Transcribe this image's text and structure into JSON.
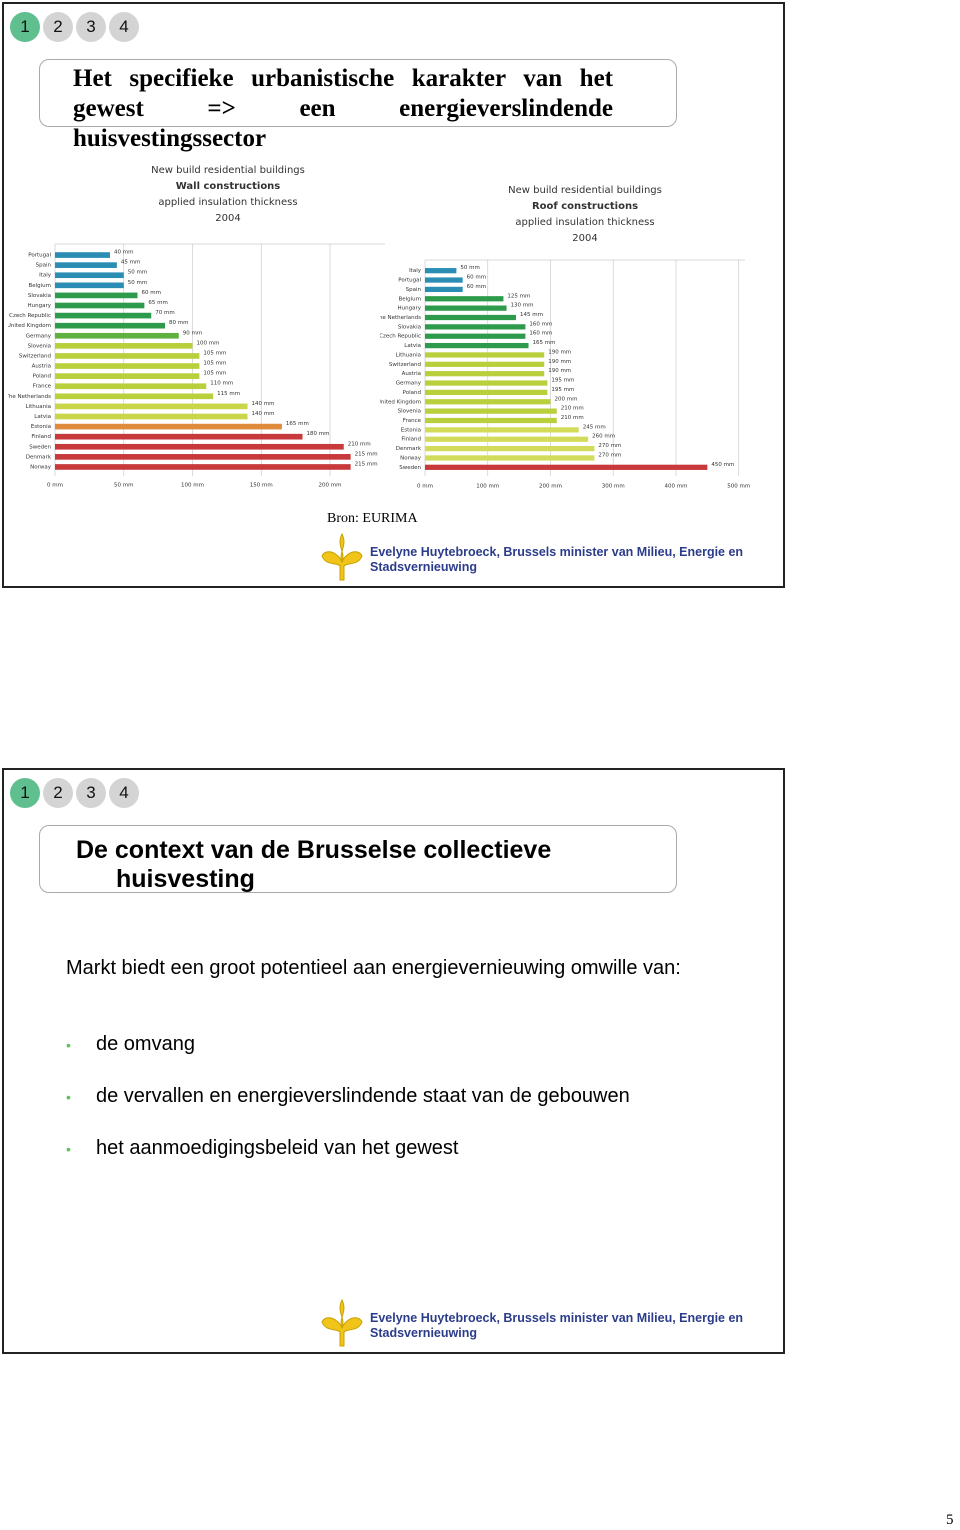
{
  "slides": [
    {
      "nav": [
        "1",
        "2",
        "3",
        "4"
      ],
      "title": "Het specifieke urbanistische karakter van het gewest => een energieverslindende huisvestingssector",
      "source": "Bron: EURIMA",
      "footer": "Evelyne Huytebroeck, Brussels minister van Milieu, Energie en Stadsvernieuwing"
    },
    {
      "nav": [
        "1",
        "2",
        "3",
        "4"
      ],
      "title_lines": [
        "De context van de Brusselse collectieve",
        "huisvesting"
      ],
      "paragraph": "Markt biedt een groot potentieel aan energievernieuwing omwille van:",
      "bullets": [
        "de omvang",
        "de vervallen en energieverslindende staat van de gebouwen",
        "het aanmoedigingsbeleid van het gewest"
      ],
      "footer": "Evelyne Huytebroeck, Brussels minister van Milieu, Energie en Stadsvernieuwing"
    }
  ],
  "page_number": "5",
  "chart_data": [
    {
      "type": "hbar",
      "title_lines": [
        "New build residential buildings",
        "Wall constructions",
        "applied insulation thickness",
        "2004"
      ],
      "categories": [
        "Portugal",
        "Spain",
        "Italy",
        "Belgium",
        "Slovakia",
        "Hungary",
        "Czech Republic",
        "United Kingdom",
        "Germany",
        "Slovenia",
        "Switzerland",
        "Austria",
        "Poland",
        "France",
        "The Netherlands",
        "Lithuania",
        "Latvia",
        "Estonia",
        "Finland",
        "Sweden",
        "Denmark",
        "Norway"
      ],
      "values": [
        40,
        45,
        50,
        50,
        60,
        65,
        70,
        80,
        90,
        100,
        105,
        105,
        105,
        110,
        115,
        140,
        140,
        165,
        180,
        210,
        215,
        215
      ],
      "value_labels": [
        "40 mm",
        "45 mm",
        "50 mm",
        "50 mm",
        "60 mm",
        "65 mm",
        "70 mm",
        "80 mm",
        "90 mm",
        "100 mm",
        "105 mm",
        "105 mm",
        "105 mm",
        "110 mm",
        "115 mm",
        "140 mm",
        "140 mm",
        "165 mm",
        "180 mm",
        "210 mm",
        "215 mm",
        "215 mm"
      ],
      "colors": [
        "#2b8db3",
        "#2b8db3",
        "#2b8db3",
        "#2b8db3",
        "#2e9a4c",
        "#2e9a4c",
        "#2e9a4c",
        "#2e9a4c",
        "#5fb13f",
        "#b9cf3c",
        "#b9cf3c",
        "#b9cf3c",
        "#b9cf3c",
        "#b9cf3c",
        "#b9cf3c",
        "#c9d64a",
        "#c9d64a",
        "#e08a3c",
        "#c8393b",
        "#c8393b",
        "#c8393b",
        "#c8393b"
      ],
      "xlim": [
        0,
        240
      ],
      "xticks": [
        {
          "value": 0,
          "label": "0 mm"
        },
        {
          "value": 50,
          "label": "50 mm"
        },
        {
          "value": 100,
          "label": "100 mm"
        },
        {
          "value": 150,
          "label": "150 mm"
        },
        {
          "value": 200,
          "label": "200 mm"
        }
      ],
      "grid": true
    },
    {
      "type": "hbar",
      "title_lines": [
        "New build residential buildings",
        "Roof constructions",
        "applied insulation thickness",
        "2004"
      ],
      "categories": [
        "Italy",
        "Portugal",
        "Spain",
        "Belgium",
        "Hungary",
        "The Netherlands",
        "Slovakia",
        "Czech Republic",
        "Latvia",
        "Lithuania",
        "Switzerland",
        "Austria",
        "Germany",
        "Poland",
        "United Kingdom",
        "Slovenia",
        "France",
        "Estonia",
        "Finland",
        "Denmark",
        "Norway",
        "Sweden"
      ],
      "values": [
        50,
        60,
        60,
        125,
        130,
        145,
        160,
        160,
        165,
        190,
        190,
        190,
        195,
        195,
        200,
        210,
        210,
        245,
        260,
        270,
        270,
        450
      ],
      "value_labels": [
        "50 mm",
        "60 mm",
        "60 mm",
        "125 mm",
        "130 mm",
        "145 mm",
        "160 mm",
        "160 mm",
        "165 mm",
        "190 mm",
        "190 mm",
        "190 mm",
        "195 mm",
        "195 mm",
        "200 mm",
        "210 mm",
        "210 mm",
        "245 mm",
        "260 mm",
        "270 mm",
        "270 mm",
        "450 mm"
      ],
      "colors": [
        "#2b8db3",
        "#2b8db3",
        "#2b8db3",
        "#2e9a4c",
        "#2e9a4c",
        "#2e9a4c",
        "#2e9a4c",
        "#2e9a4c",
        "#2e9a4c",
        "#b9cf3c",
        "#b9cf3c",
        "#b9cf3c",
        "#b9cf3c",
        "#b9cf3c",
        "#b9cf3c",
        "#b9cf3c",
        "#b9cf3c",
        "#d2dc5a",
        "#d2dc5a",
        "#d2dc5a",
        "#d2dc5a",
        "#c8393b"
      ],
      "xlim": [
        0,
        510
      ],
      "xticks": [
        {
          "value": 0,
          "label": "0 mm"
        },
        {
          "value": 100,
          "label": "100 mm"
        },
        {
          "value": 200,
          "label": "200 mm"
        },
        {
          "value": 300,
          "label": "300 mm"
        },
        {
          "value": 400,
          "label": "400 mm"
        },
        {
          "value": 500,
          "label": "500 mm"
        }
      ],
      "grid": true
    }
  ]
}
